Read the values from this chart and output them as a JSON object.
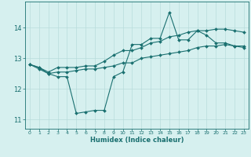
{
  "title": "",
  "xlabel": "Humidex (Indice chaleur)",
  "ylabel": "",
  "background_color": "#d6f0ef",
  "grid_color": "#b8dcdc",
  "line_color": "#1a7070",
  "xlim": [
    -0.5,
    23.5
  ],
  "ylim": [
    10.7,
    14.85
  ],
  "yticks": [
    11,
    12,
    13,
    14
  ],
  "xticks": [
    0,
    1,
    2,
    3,
    4,
    5,
    6,
    7,
    8,
    9,
    10,
    11,
    12,
    13,
    14,
    15,
    16,
    17,
    18,
    19,
    20,
    21,
    22,
    23
  ],
  "series": {
    "line1": [
      12.8,
      12.7,
      12.5,
      12.4,
      12.4,
      11.2,
      11.25,
      11.3,
      11.3,
      12.4,
      12.55,
      13.45,
      13.45,
      13.65,
      13.65,
      14.5,
      13.6,
      13.6,
      13.9,
      13.75,
      13.5,
      13.5,
      13.4,
      13.35
    ],
    "line2": [
      12.8,
      12.7,
      12.55,
      12.7,
      12.7,
      12.7,
      12.75,
      12.75,
      12.9,
      13.1,
      13.25,
      13.25,
      13.35,
      13.5,
      13.55,
      13.7,
      13.75,
      13.85,
      13.9,
      13.9,
      13.95,
      13.95,
      13.9,
      13.85
    ],
    "line3": [
      12.8,
      12.65,
      12.5,
      12.55,
      12.55,
      12.6,
      12.65,
      12.65,
      12.7,
      12.75,
      12.85,
      12.85,
      13.0,
      13.05,
      13.1,
      13.15,
      13.2,
      13.25,
      13.35,
      13.4,
      13.4,
      13.45,
      13.4,
      13.4
    ]
  },
  "marker": "D",
  "marker_size": 2.0,
  "line_width": 0.8,
  "xlabel_fontsize": 6.0,
  "xlabel_fontweight": "bold",
  "xtick_fontsize": 4.5,
  "ytick_fontsize": 6.0
}
